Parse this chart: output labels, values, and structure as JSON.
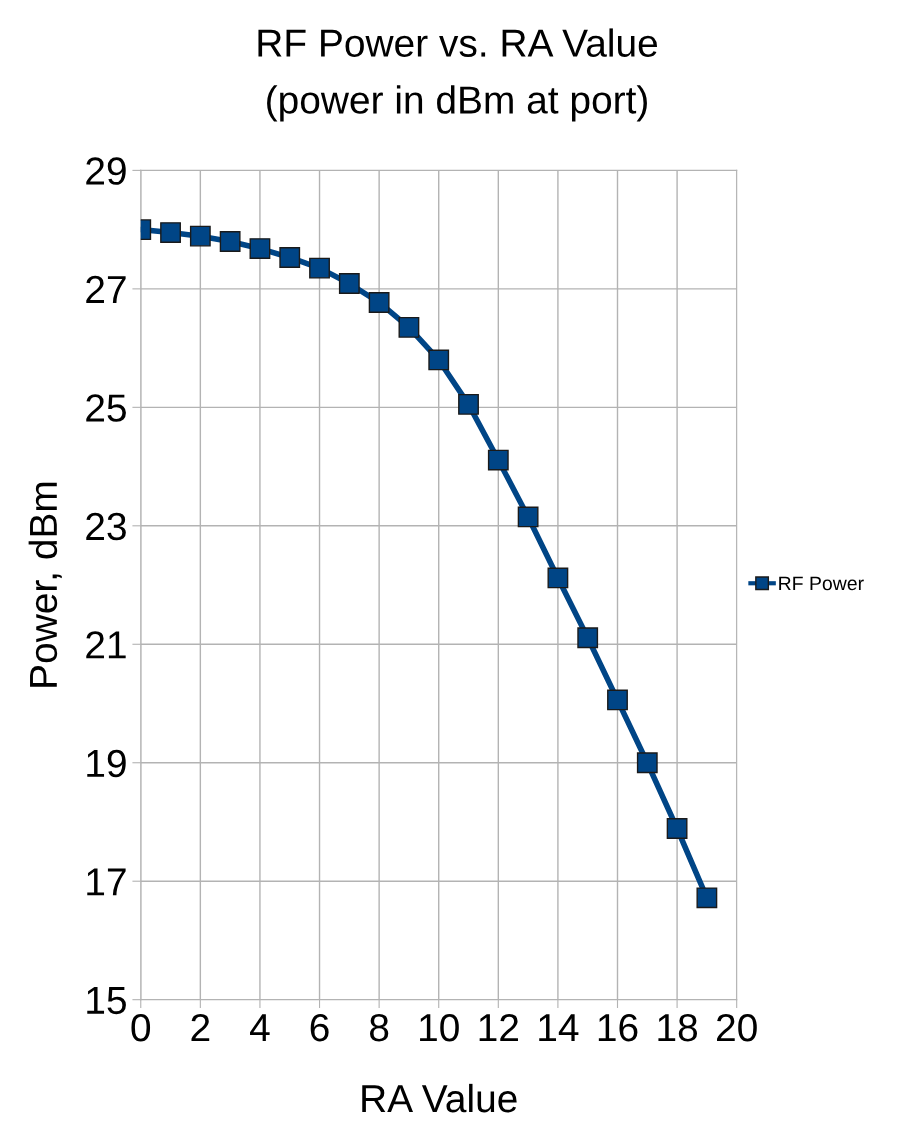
{
  "chart_data": {
    "type": "line",
    "title": "RF Power vs. RA Value",
    "subtitle": "(power in dBm at port)",
    "xlabel": "RA Value",
    "ylabel": "Power, dBm",
    "x": [
      0,
      1,
      2,
      3,
      4,
      5,
      6,
      7,
      8,
      9,
      10,
      11,
      12,
      13,
      14,
      15,
      16,
      17,
      18,
      19
    ],
    "series": [
      {
        "name": "RF Power",
        "color": "#004586",
        "values": [
          28.0,
          27.95,
          27.89,
          27.8,
          27.68,
          27.53,
          27.35,
          27.09,
          26.77,
          26.35,
          25.8,
          25.05,
          24.11,
          23.15,
          22.12,
          21.11,
          20.06,
          19.0,
          17.89,
          16.72
        ]
      }
    ],
    "xlim": [
      0,
      20
    ],
    "xticks": [
      0,
      2,
      4,
      6,
      8,
      10,
      12,
      14,
      16,
      18,
      20
    ],
    "ylim": [
      15,
      29
    ],
    "yticks": [
      15,
      17,
      19,
      21,
      23,
      25,
      27,
      29
    ],
    "grid": true,
    "legend": "right",
    "marker": "square",
    "line_style": "solid"
  }
}
